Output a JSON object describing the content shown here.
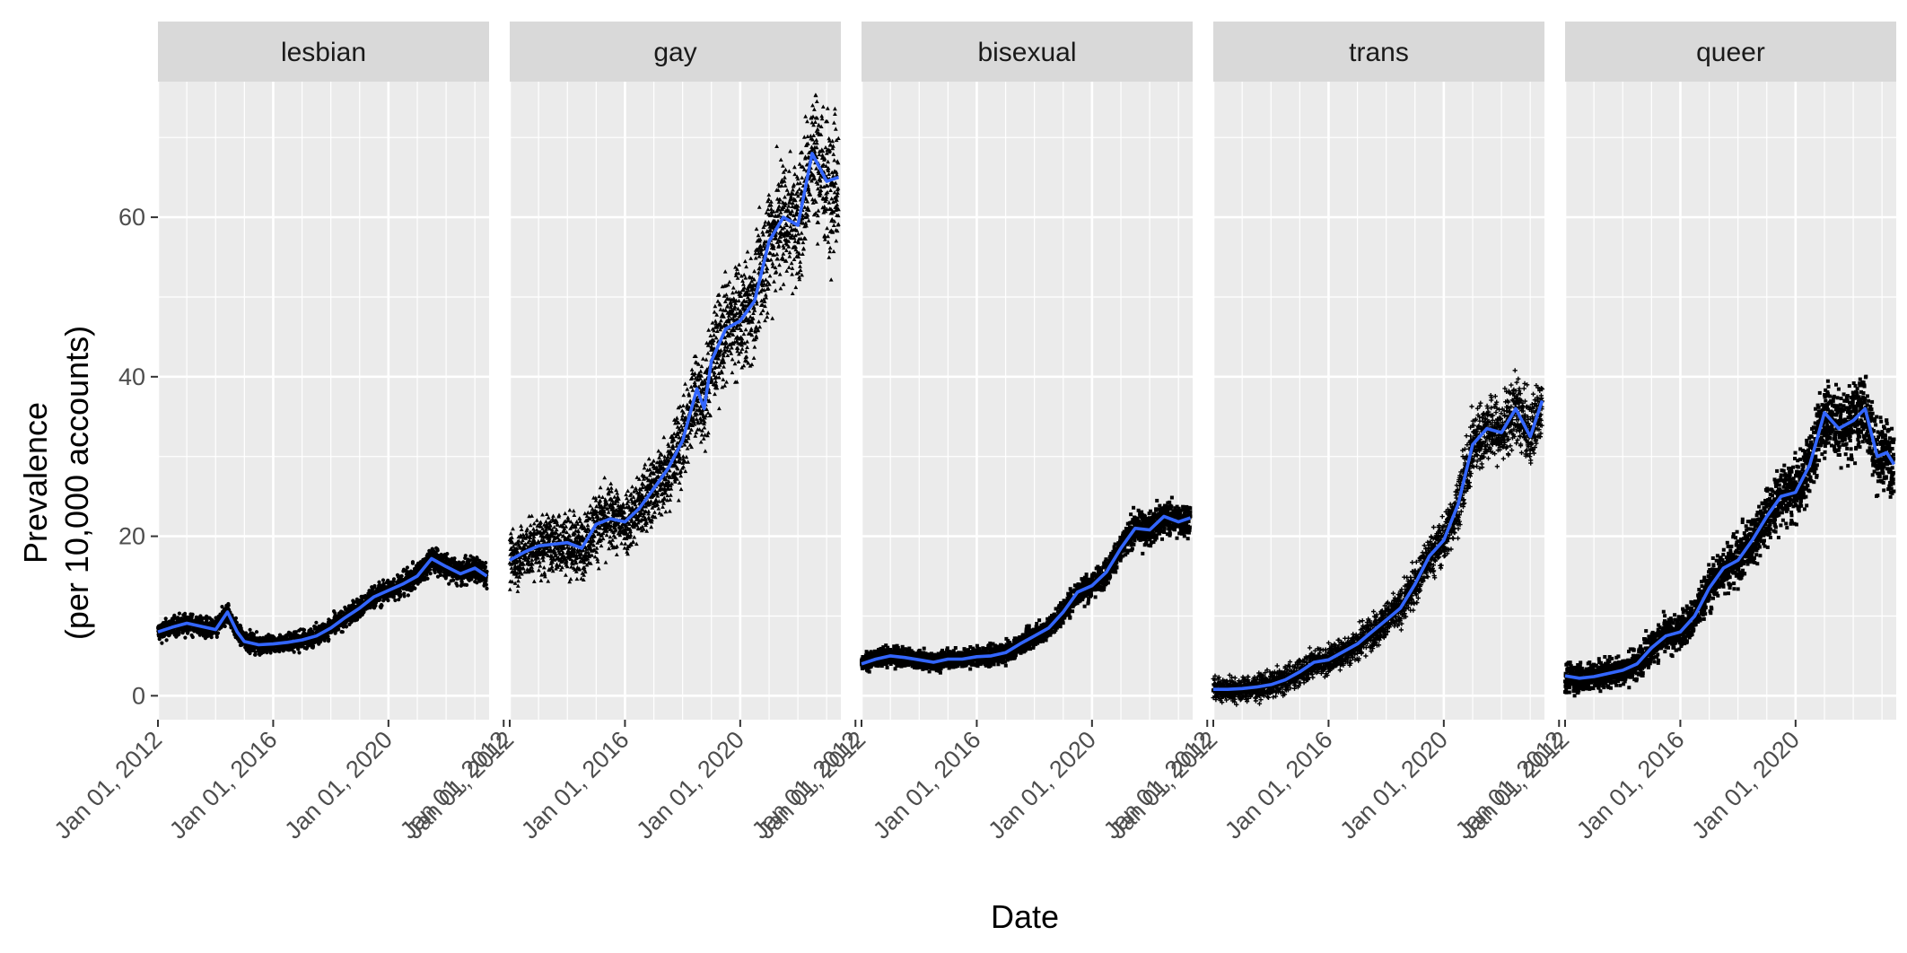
{
  "chart_data": {
    "type": "scatter",
    "layout": "faceted small multiples with smoothed trend line",
    "xlabel": "Date",
    "ylabel_lines": [
      "Prevalence",
      "(per 10,000 accounts)"
    ],
    "x_range": [
      "2012-01-01",
      "2023-06-30"
    ],
    "ylim": [
      -3,
      77
    ],
    "y_ticks": [
      0,
      20,
      40,
      60
    ],
    "grid": true,
    "colors": {
      "panel_bg": "#ebebeb",
      "strip_bg": "#d9d9d9",
      "grid": "#ffffff",
      "points": "#000000",
      "trend": "#3366ff"
    },
    "panels": [
      {
        "name": "lesbian",
        "marker": "circle",
        "x_ticks": [
          "Jan 01, 2012",
          "Jan 01, 2016",
          "Jan 01, 2020",
          "Jan 01, 2012"
        ],
        "trend": [
          [
            "2012-01-01",
            8.0
          ],
          [
            "2012-07-01",
            8.6
          ],
          [
            "2013-01-01",
            9.1
          ],
          [
            "2013-07-01",
            8.7
          ],
          [
            "2014-01-01",
            8.3
          ],
          [
            "2014-06-01",
            10.5
          ],
          [
            "2014-10-01",
            8.0
          ],
          [
            "2015-01-01",
            6.8
          ],
          [
            "2015-07-01",
            6.4
          ],
          [
            "2016-01-01",
            6.5
          ],
          [
            "2016-07-01",
            6.7
          ],
          [
            "2017-01-01",
            7.0
          ],
          [
            "2017-07-01",
            7.5
          ],
          [
            "2018-01-01",
            8.5
          ],
          [
            "2018-07-01",
            9.8
          ],
          [
            "2019-01-01",
            11.0
          ],
          [
            "2019-07-01",
            12.4
          ],
          [
            "2020-01-01",
            13.2
          ],
          [
            "2020-07-01",
            14.0
          ],
          [
            "2021-01-01",
            15.0
          ],
          [
            "2021-07-01",
            17.2
          ],
          [
            "2022-01-01",
            16.2
          ],
          [
            "2022-07-01",
            15.3
          ],
          [
            "2023-01-01",
            16.0
          ],
          [
            "2023-06-01",
            15.0
          ]
        ],
        "spread": 0.9
      },
      {
        "name": "gay",
        "marker": "triangle",
        "x_ticks": [
          "Jan 01, 2012",
          "Jan 01, 2016",
          "Jan 01, 2020",
          "Jan 01, 2012"
        ],
        "trend": [
          [
            "2012-01-01",
            17.0
          ],
          [
            "2012-07-01",
            18.0
          ],
          [
            "2013-01-01",
            18.8
          ],
          [
            "2013-07-01",
            19.0
          ],
          [
            "2014-01-01",
            19.2
          ],
          [
            "2014-07-01",
            18.5
          ],
          [
            "2015-01-01",
            21.5
          ],
          [
            "2015-07-01",
            22.2
          ],
          [
            "2016-01-01",
            21.8
          ],
          [
            "2016-07-01",
            23.5
          ],
          [
            "2017-01-01",
            26.0
          ],
          [
            "2017-07-01",
            28.5
          ],
          [
            "2018-01-01",
            32.0
          ],
          [
            "2018-07-01",
            38.5
          ],
          [
            "2018-10-01",
            36.0
          ],
          [
            "2019-01-01",
            42.0
          ],
          [
            "2019-07-01",
            46.0
          ],
          [
            "2020-01-01",
            47.0
          ],
          [
            "2020-07-01",
            49.5
          ],
          [
            "2021-01-01",
            57.0
          ],
          [
            "2021-07-01",
            60.0
          ],
          [
            "2022-01-01",
            59.0
          ],
          [
            "2022-07-01",
            68.0
          ],
          [
            "2023-01-01",
            64.5
          ],
          [
            "2023-06-01",
            65.0
          ]
        ],
        "spread": 2.0
      },
      {
        "name": "bisexual",
        "marker": "square",
        "x_ticks": [
          "Jan 01, 2012",
          "Jan 01, 2016",
          "Jan 01, 2020",
          "Jan 01, 2012"
        ],
        "trend": [
          [
            "2012-01-01",
            4.0
          ],
          [
            "2012-07-01",
            4.6
          ],
          [
            "2013-01-01",
            5.0
          ],
          [
            "2013-07-01",
            4.8
          ],
          [
            "2014-01-01",
            4.5
          ],
          [
            "2014-07-01",
            4.2
          ],
          [
            "2015-01-01",
            4.6
          ],
          [
            "2015-07-01",
            4.6
          ],
          [
            "2016-01-01",
            4.9
          ],
          [
            "2016-07-01",
            5.0
          ],
          [
            "2017-01-01",
            5.4
          ],
          [
            "2017-07-01",
            6.5
          ],
          [
            "2018-01-01",
            7.5
          ],
          [
            "2018-07-01",
            8.5
          ],
          [
            "2019-01-01",
            10.5
          ],
          [
            "2019-07-01",
            13.0
          ],
          [
            "2020-01-01",
            13.8
          ],
          [
            "2020-07-01",
            15.5
          ],
          [
            "2021-01-01",
            18.5
          ],
          [
            "2021-07-01",
            21.0
          ],
          [
            "2022-01-01",
            20.8
          ],
          [
            "2022-07-01",
            22.5
          ],
          [
            "2023-01-01",
            21.8
          ],
          [
            "2023-06-01",
            22.3
          ]
        ],
        "spread": 1.0
      },
      {
        "name": "trans",
        "marker": "cross",
        "x_ticks": [
          "Jan 01, 2012",
          "Jan 01, 2016",
          "Jan 01, 2020",
          "Jan 01, 2012"
        ],
        "trend": [
          [
            "2012-01-01",
            0.8
          ],
          [
            "2012-07-01",
            0.8
          ],
          [
            "2013-01-01",
            0.9
          ],
          [
            "2013-07-01",
            1.1
          ],
          [
            "2014-01-01",
            1.4
          ],
          [
            "2014-07-01",
            2.0
          ],
          [
            "2015-01-01",
            3.0
          ],
          [
            "2015-07-01",
            4.2
          ],
          [
            "2016-01-01",
            4.5
          ],
          [
            "2016-07-01",
            5.5
          ],
          [
            "2017-01-01",
            6.5
          ],
          [
            "2017-07-01",
            8.0
          ],
          [
            "2018-01-01",
            9.5
          ],
          [
            "2018-07-01",
            11.0
          ],
          [
            "2019-01-01",
            14.0
          ],
          [
            "2019-07-01",
            17.5
          ],
          [
            "2020-01-01",
            19.5
          ],
          [
            "2020-07-01",
            24.0
          ],
          [
            "2021-01-01",
            31.5
          ],
          [
            "2021-07-01",
            33.5
          ],
          [
            "2022-01-01",
            33.0
          ],
          [
            "2022-07-01",
            36.0
          ],
          [
            "2023-01-01",
            32.5
          ],
          [
            "2023-06-01",
            37.0
          ]
        ],
        "spread": 1.5
      },
      {
        "name": "queer",
        "marker": "square",
        "x_ticks": [
          "Jan 01, 2012",
          "Jan 01, 2016",
          "Jan 01, 2020"
        ],
        "trend": [
          [
            "2012-01-01",
            2.5
          ],
          [
            "2012-07-01",
            2.2
          ],
          [
            "2013-01-01",
            2.4
          ],
          [
            "2013-07-01",
            2.8
          ],
          [
            "2014-01-01",
            3.2
          ],
          [
            "2014-07-01",
            4.0
          ],
          [
            "2015-01-01",
            6.0
          ],
          [
            "2015-07-01",
            7.5
          ],
          [
            "2016-01-01",
            8.0
          ],
          [
            "2016-07-01",
            10.0
          ],
          [
            "2017-01-01",
            13.5
          ],
          [
            "2017-07-01",
            16.0
          ],
          [
            "2018-01-01",
            17.0
          ],
          [
            "2018-07-01",
            19.5
          ],
          [
            "2019-01-01",
            22.5
          ],
          [
            "2019-07-01",
            25.0
          ],
          [
            "2020-01-01",
            25.5
          ],
          [
            "2020-07-01",
            29.0
          ],
          [
            "2021-01-01",
            35.5
          ],
          [
            "2021-07-01",
            33.5
          ],
          [
            "2022-01-01",
            34.5
          ],
          [
            "2022-06-01",
            36.0
          ],
          [
            "2022-11-01",
            30.0
          ],
          [
            "2023-03-01",
            30.5
          ],
          [
            "2023-06-01",
            29.0
          ]
        ],
        "spread": 1.7
      }
    ]
  }
}
